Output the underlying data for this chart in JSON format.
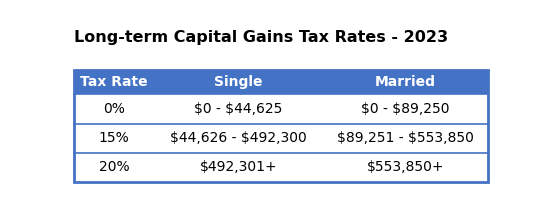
{
  "title": "Long-term Capital Gains Tax Rates - 2023",
  "header": [
    "Tax Rate",
    "Single",
    "Married"
  ],
  "rows": [
    [
      "0%",
      "$0 - $44,625",
      "$0 - $89,250"
    ],
    [
      "15%",
      "$44,626 - $492,300",
      "$89,251 - $553,850"
    ],
    [
      "20%",
      "$492,301+",
      "$553,850+"
    ]
  ],
  "header_bg": "#4472C4",
  "header_text_color": "#FFFFFF",
  "row_bg": "#FFFFFF",
  "row_text_color": "#000000",
  "border_color": "#4472C4",
  "title_color": "#000000",
  "title_fontsize": 11.5,
  "header_fontsize": 10,
  "row_fontsize": 10,
  "outer_bg": "#FFFFFF"
}
